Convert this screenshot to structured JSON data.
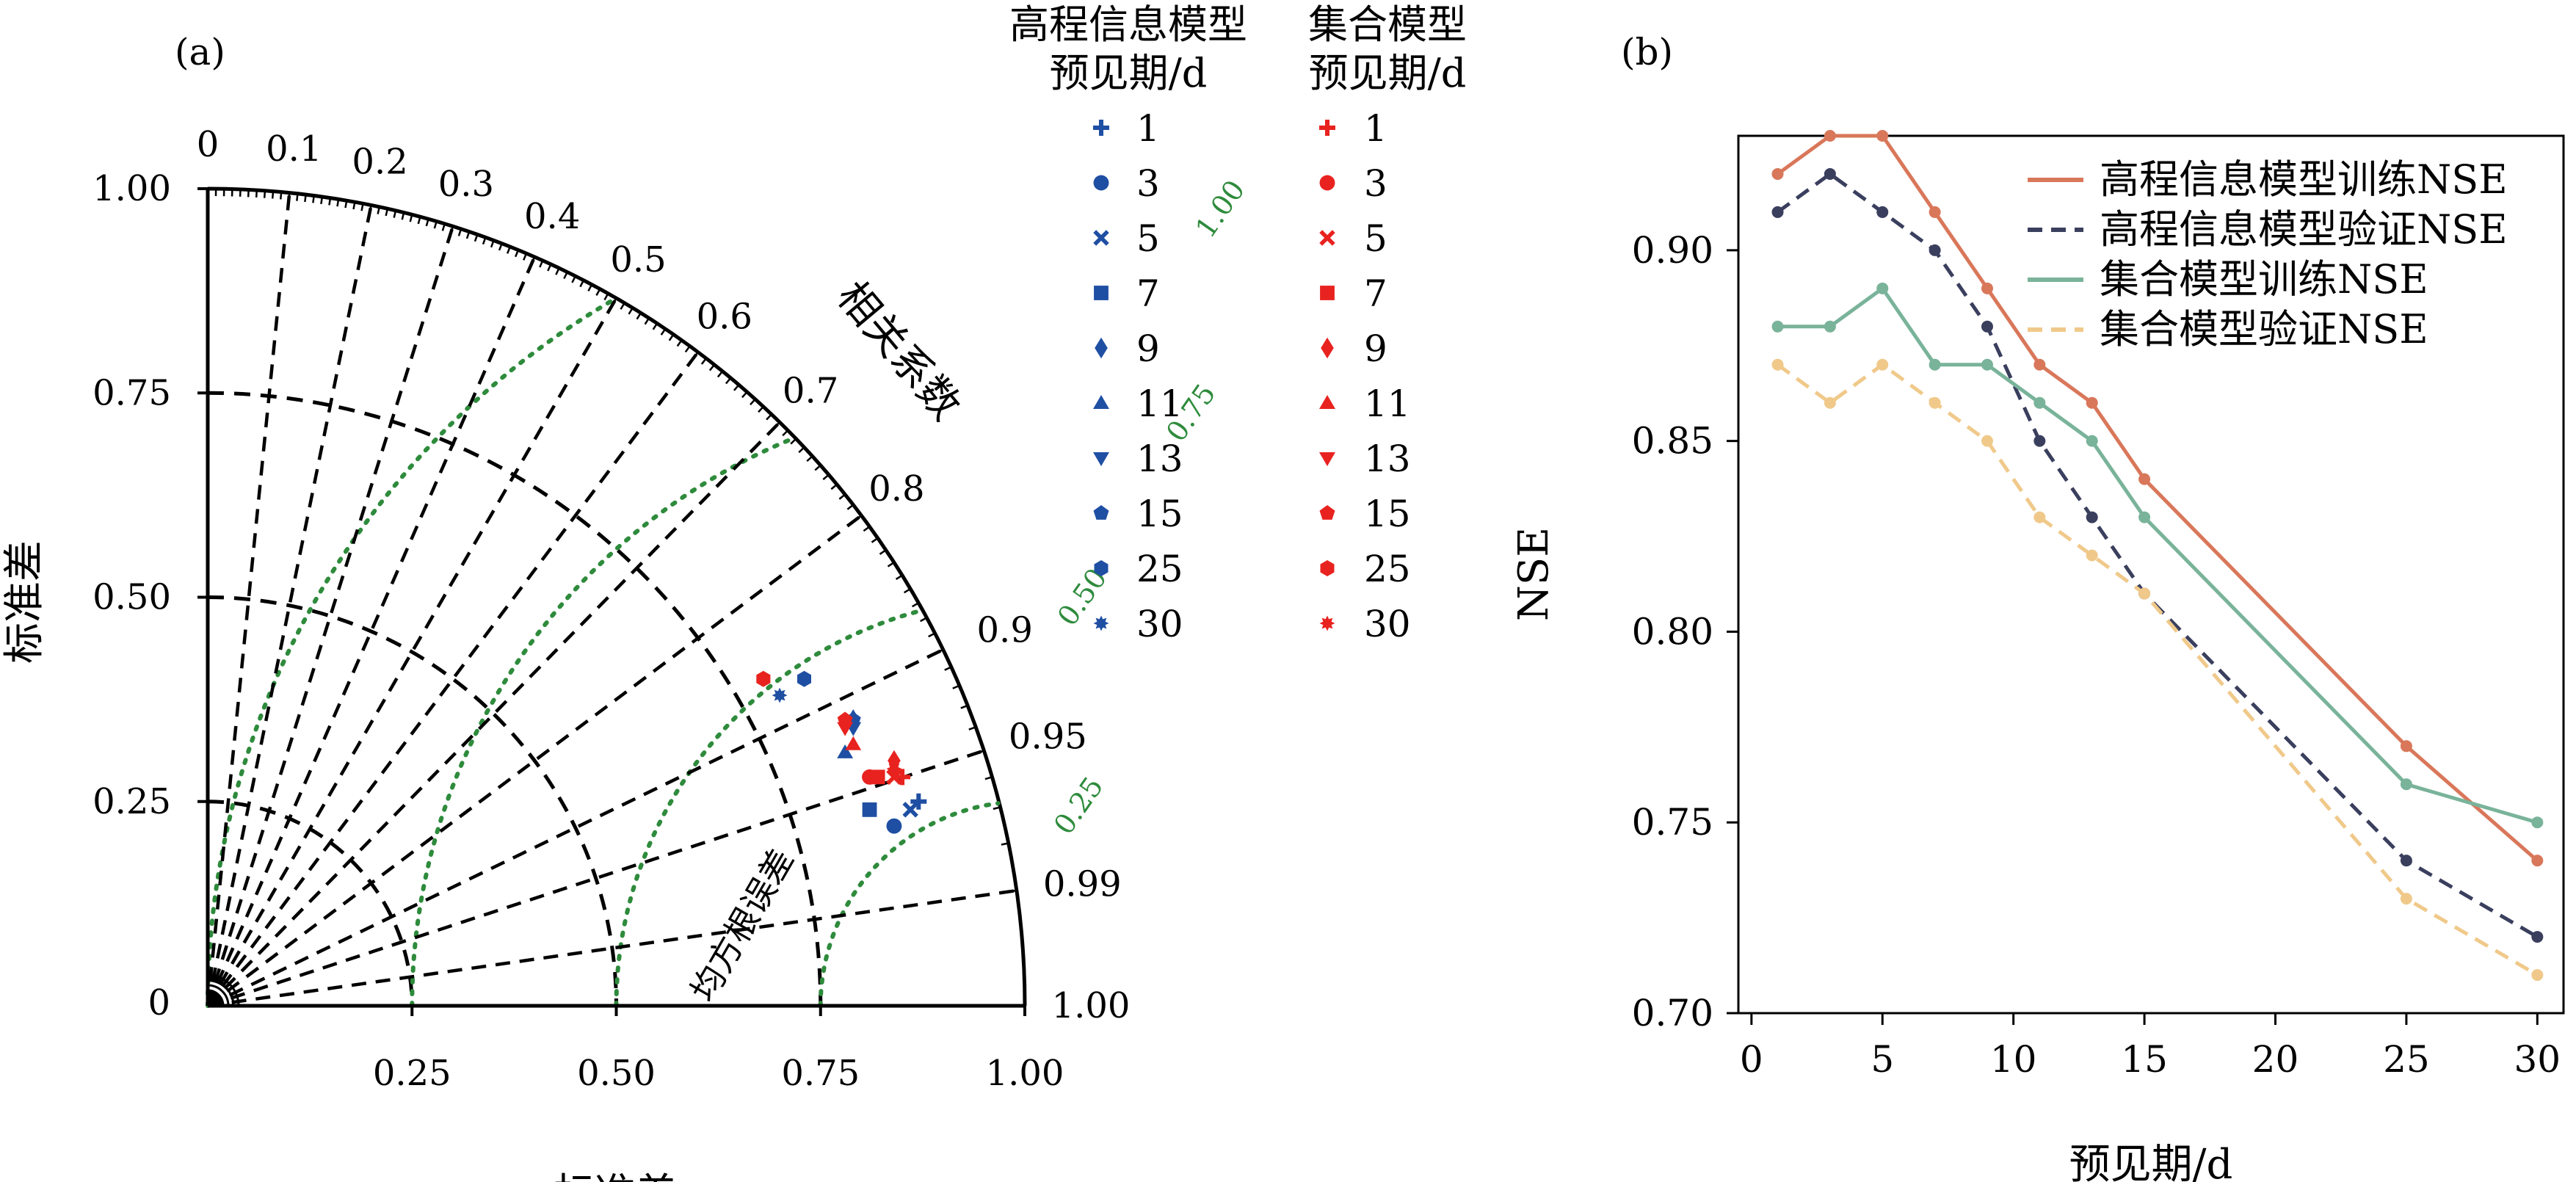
{
  "panel_a": {
    "label": "(a)",
    "xlabel": "标准差",
    "ylabel": "标准差",
    "corr_title": "相关系数",
    "rmse_title": "均方根误差",
    "std_ticks": [
      "0.25",
      "0.50",
      "0.75",
      "1.00"
    ],
    "std_zero": "0",
    "corr_ticks": [
      "0",
      "0.1",
      "0.2",
      "0.3",
      "0.4",
      "0.5",
      "0.6",
      "0.7",
      "0.8",
      "0.9",
      "0.95",
      "0.99",
      "1.00"
    ],
    "rmse_labels": [
      "0.25",
      "0.50",
      "0.75",
      "1.00"
    ],
    "legend": {
      "elev_title_line1": "高程信息模型",
      "elev_title_line2": "预见期/d",
      "ens_title_line1": "集合模型",
      "ens_title_line2": "预见期/d",
      "items": [
        "1",
        "3",
        "5",
        "7",
        "9",
        "11",
        "13",
        "15",
        "25",
        "30"
      ],
      "elev_color": "#1f4fa3",
      "ens_color": "#e8231f"
    }
  },
  "panel_b": {
    "label": "(b)",
    "xlabel": "预见期/d",
    "ylabel": "NSE",
    "xticks": [
      "0",
      "5",
      "10",
      "15",
      "20",
      "25",
      "30"
    ],
    "yticks": [
      "0.70",
      "0.75",
      "0.80",
      "0.85",
      "0.90"
    ],
    "legend": [
      "高程信息模型训练NSE",
      "高程信息模型验证NSE",
      "集合模型训练NSE",
      "集合模型验证NSE"
    ]
  },
  "chart_data": [
    {
      "type": "scatter",
      "subtype": "taylor_diagram",
      "std_range": [
        0,
        1.0
      ],
      "series": [
        {
          "name": "高程信息模型",
          "color": "#1f4fa3",
          "points": [
            {
              "lead": "1",
              "x": 0.87,
              "y": 0.25,
              "marker": "plus"
            },
            {
              "lead": "3",
              "x": 0.84,
              "y": 0.22,
              "marker": "circle"
            },
            {
              "lead": "5",
              "x": 0.86,
              "y": 0.24,
              "marker": "x"
            },
            {
              "lead": "7",
              "x": 0.81,
              "y": 0.24,
              "marker": "square"
            },
            {
              "lead": "9",
              "x": 0.79,
              "y": 0.35,
              "marker": "diamond"
            },
            {
              "lead": "11",
              "x": 0.78,
              "y": 0.31,
              "marker": "triangle-up"
            },
            {
              "lead": "13",
              "x": 0.79,
              "y": 0.34,
              "marker": "triangle-down"
            },
            {
              "lead": "15",
              "x": 0.79,
              "y": 0.35,
              "marker": "pentagon"
            },
            {
              "lead": "25",
              "x": 0.73,
              "y": 0.4,
              "marker": "hexagon"
            },
            {
              "lead": "30",
              "x": 0.7,
              "y": 0.38,
              "marker": "star"
            }
          ]
        },
        {
          "name": "集合模型",
          "color": "#e8231f",
          "points": [
            {
              "lead": "1",
              "x": 0.85,
              "y": 0.28,
              "marker": "plus"
            },
            {
              "lead": "3",
              "x": 0.81,
              "y": 0.28,
              "marker": "circle"
            },
            {
              "lead": "5",
              "x": 0.84,
              "y": 0.28,
              "marker": "x"
            },
            {
              "lead": "7",
              "x": 0.82,
              "y": 0.28,
              "marker": "square"
            },
            {
              "lead": "9",
              "x": 0.84,
              "y": 0.3,
              "marker": "diamond"
            },
            {
              "lead": "11",
              "x": 0.79,
              "y": 0.32,
              "marker": "triangle-up"
            },
            {
              "lead": "13",
              "x": 0.78,
              "y": 0.34,
              "marker": "triangle-down"
            },
            {
              "lead": "15",
              "x": 0.78,
              "y": 0.35,
              "marker": "pentagon"
            },
            {
              "lead": "25",
              "x": 0.68,
              "y": 0.4,
              "marker": "hexagon"
            },
            {
              "lead": "30",
              "x": 0.84,
              "y": 0.29,
              "marker": "star"
            }
          ]
        }
      ]
    },
    {
      "type": "line",
      "x": [
        1,
        3,
        5,
        7,
        9,
        11,
        13,
        15,
        25,
        30
      ],
      "xlim": [
        -0.5,
        31
      ],
      "ylim": [
        0.7,
        0.93
      ],
      "xlabel": "预见期/d",
      "ylabel": "NSE",
      "legend_position": "top-right",
      "series": [
        {
          "name": "高程信息模型训练NSE",
          "color": "#d9775a",
          "dash": "solid",
          "values": [
            0.92,
            0.93,
            0.93,
            0.91,
            0.89,
            0.87,
            0.86,
            0.84,
            0.77,
            0.74
          ]
        },
        {
          "name": "高程信息模型验证NSE",
          "color": "#3a3f5e",
          "dash": "dashed",
          "values": [
            0.91,
            0.92,
            0.91,
            0.9,
            0.88,
            0.85,
            0.83,
            0.81,
            0.74,
            0.72
          ]
        },
        {
          "name": "集合模型训练NSE",
          "color": "#79b39a",
          "dash": "solid",
          "values": [
            0.88,
            0.88,
            0.89,
            0.87,
            0.87,
            0.86,
            0.85,
            0.83,
            0.76,
            0.75
          ]
        },
        {
          "name": "集合模型验证NSE",
          "color": "#f0c98a",
          "dash": "dashed",
          "values": [
            0.87,
            0.86,
            0.87,
            0.86,
            0.85,
            0.83,
            0.82,
            0.81,
            0.73,
            0.71
          ]
        }
      ]
    }
  ]
}
